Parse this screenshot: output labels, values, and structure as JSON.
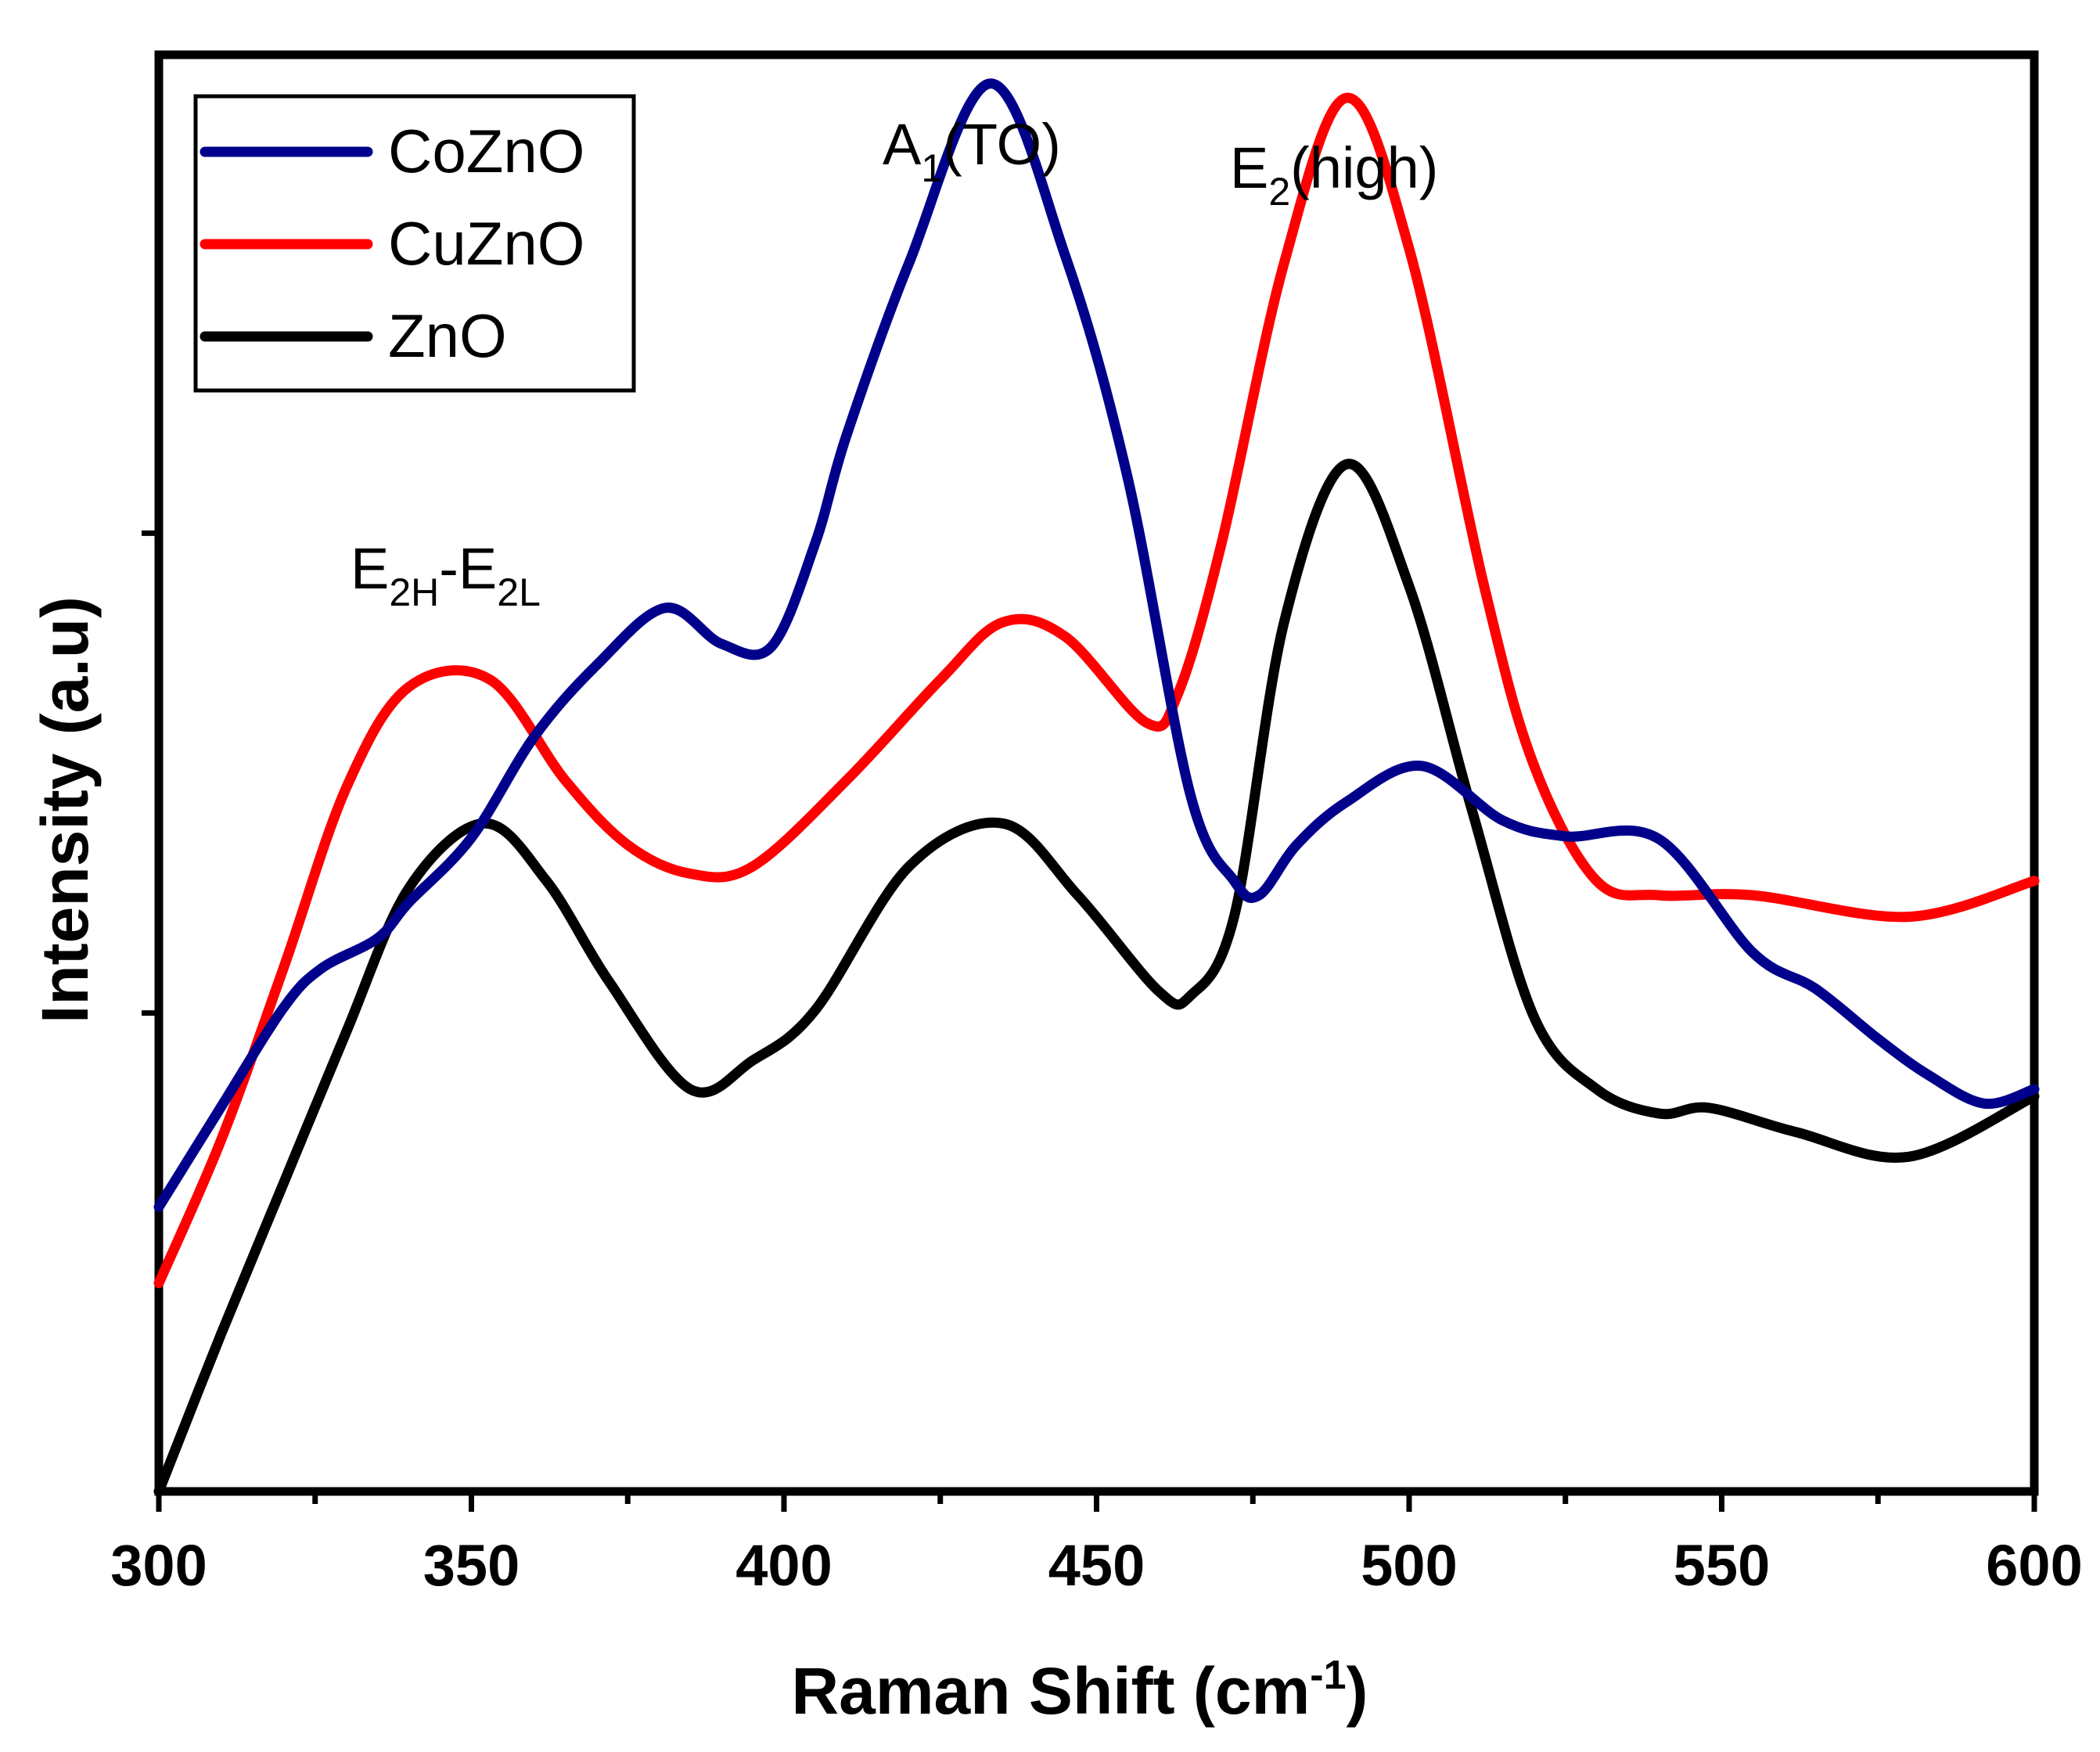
{
  "chart_data": {
    "type": "line",
    "title": "",
    "xlabel": "Raman Shift (cm",
    "xlabel_sup": "-1",
    "xlabel_end": ")",
    "ylabel": "Intensity (a.u)",
    "xlim": [
      300,
      600
    ],
    "ylim": [
      0,
      100
    ],
    "xticks": [
      300,
      350,
      400,
      450,
      500,
      550,
      600
    ],
    "yticks_unlabeled": [
      33.3,
      66.7
    ],
    "legend_position": "top-left",
    "series": [
      {
        "name": "CoZnO",
        "color": "#00008b",
        "x": [
          300,
          310,
          320,
          326,
          335,
          340,
          350,
          360,
          370,
          381,
          390,
          398,
          405,
          410,
          420,
          433,
          445,
          455,
          465,
          472,
          476,
          482,
          490,
          502,
          515,
          525,
          540,
          555,
          565,
          575,
          583,
          592,
          600
        ],
        "y": [
          19.8,
          26.8,
          33.7,
          36.4,
          38.5,
          41.0,
          45.5,
          52.5,
          57.5,
          61.5,
          59.0,
          58.8,
          66.0,
          73.5,
          85.5,
          98.0,
          86.0,
          70.5,
          48.5,
          42.5,
          41.5,
          45.0,
          48.0,
          50.5,
          46.7,
          45.6,
          45.4,
          37.5,
          35.0,
          31.5,
          29.0,
          27.0,
          28.0
        ]
      },
      {
        "name": "CuZnO",
        "color": "#ff0000",
        "x": [
          300,
          310,
          320,
          330,
          340,
          353,
          365,
          375,
          385,
          395,
          410,
          425,
          435,
          445,
          458,
          463,
          470,
          480,
          490,
          500,
          512,
          520,
          530,
          540,
          555,
          580,
          600
        ],
        "y": [
          14.5,
          24.5,
          36.5,
          49.0,
          56.0,
          56.5,
          49.5,
          45.0,
          43.0,
          43.5,
          49.5,
          56.5,
          60.5,
          59.5,
          53.5,
          55.5,
          66.0,
          85.5,
          97.0,
          86.5,
          63.0,
          50.5,
          42.5,
          41.5,
          41.5,
          40.0,
          42.5
        ]
      },
      {
        "name": "ZnO",
        "color": "#000000",
        "x": [
          300,
          310,
          320,
          330,
          340,
          352,
          362,
          372,
          385,
          395,
          405,
          420,
          435,
          447,
          460,
          465,
          472,
          480,
          490,
          500,
          510,
          520,
          530,
          540,
          548,
          562,
          580,
          600
        ],
        "y": [
          0,
          11.0,
          21.5,
          32.0,
          42.0,
          46.5,
          42.5,
          35.5,
          28.0,
          30.0,
          33.5,
          43.5,
          46.5,
          41.5,
          34.8,
          34.5,
          40.0,
          60.5,
          71.5,
          63.0,
          47.5,
          33.0,
          28.0,
          26.3,
          26.7,
          25.0,
          23.3,
          27.5
        ]
      }
    ],
    "annotations": [
      {
        "base": "E",
        "sub": "2H",
        "mid": "-E",
        "sub2": "2L",
        "x": 348,
        "y": 61
      },
      {
        "base": "A",
        "sub": "1",
        "tail": "(TO)",
        "x": 433,
        "y": 99
      },
      {
        "base": "E",
        "sub": "2",
        "tail": "(high)",
        "x": 490,
        "y": 95
      }
    ]
  }
}
